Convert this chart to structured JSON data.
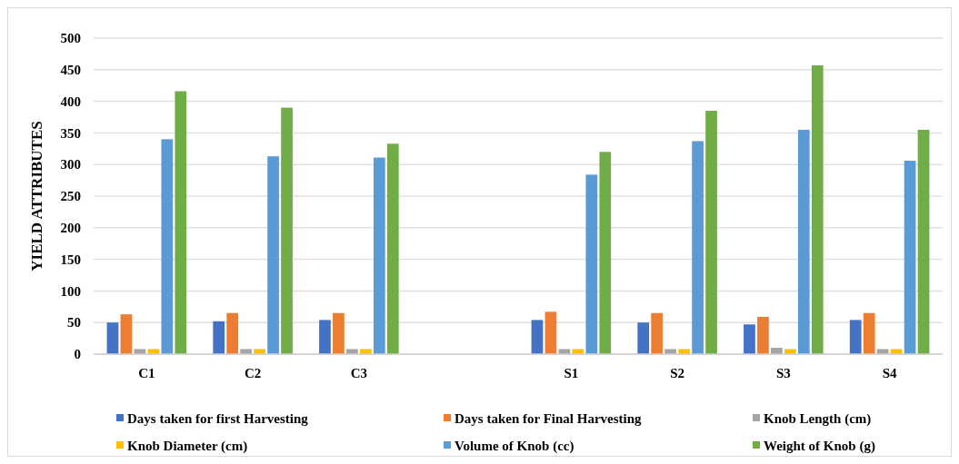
{
  "chart_data": {
    "type": "bar",
    "ylabel": "YIELD ATTRIBUTES",
    "categories": [
      "C1",
      "C2",
      "C3",
      null,
      "S1",
      "S2",
      "S3",
      "S4"
    ],
    "series": [
      {
        "name": "Days taken for first Harvesting",
        "color": "#4472c4",
        "values": [
          50,
          52,
          54,
          null,
          54,
          50,
          47,
          54
        ]
      },
      {
        "name": "Days taken for Final Harvesting",
        "color": "#ed7d31",
        "values": [
          63,
          65,
          65,
          null,
          67,
          65,
          59,
          65
        ]
      },
      {
        "name": "Knob Length (cm)",
        "color": "#a5a5a5",
        "values": [
          8,
          8,
          8,
          null,
          8,
          8,
          10,
          8
        ]
      },
      {
        "name": "Knob Diameter (cm)",
        "color": "#ffc000",
        "values": [
          8,
          8,
          8,
          null,
          8,
          8,
          8,
          8
        ]
      },
      {
        "name": "Volume of Knob (cc)",
        "color": "#5b9bd5",
        "values": [
          340,
          313,
          311,
          null,
          284,
          337,
          355,
          306
        ]
      },
      {
        "name": "Weight of Knob (g)",
        "color": "#70ad47",
        "values": [
          416,
          390,
          333,
          null,
          320,
          385,
          457,
          355
        ]
      }
    ],
    "ylim": [
      0,
      500
    ],
    "yticks": [
      0,
      50,
      100,
      150,
      200,
      250,
      300,
      350,
      400,
      450,
      500
    ],
    "grid": "y",
    "legend": "bottom"
  }
}
